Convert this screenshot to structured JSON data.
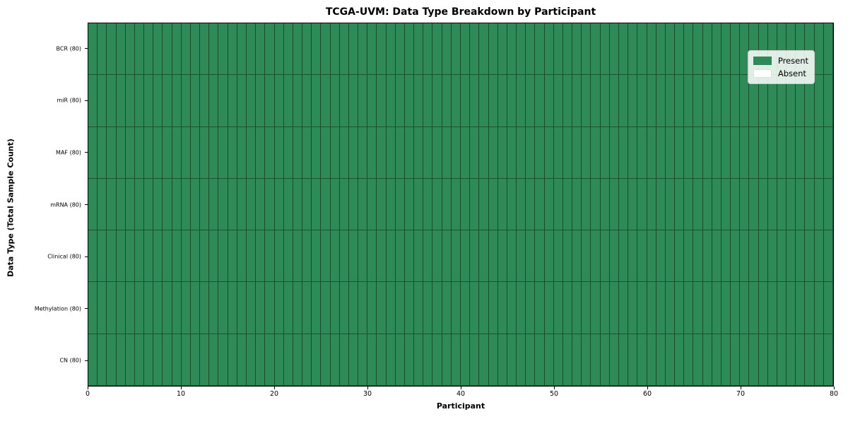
{
  "figure": {
    "title": "TCGA-UVM: Data Type Breakdown by Participant",
    "xlabel": "Participant",
    "ylabel": "Data Type (Total Sample Count)"
  },
  "legend": {
    "items": [
      {
        "name": "present",
        "label": "Present",
        "color": "#2e8b57"
      },
      {
        "name": "absent",
        "label": "Absent",
        "color": "#ffffff"
      }
    ],
    "position": "upper right"
  },
  "chart_data": {
    "type": "heatmap",
    "title": "TCGA-UVM: Data Type Breakdown by Participant",
    "xlabel": "Participant",
    "ylabel": "Data Type (Total Sample Count)",
    "x_range": [
      0,
      80
    ],
    "x_ticks": [
      0,
      10,
      20,
      30,
      40,
      50,
      60,
      70,
      80
    ],
    "n_participants": 80,
    "grid": "cell-edges-on",
    "colors": {
      "present": "#2e8b57",
      "absent": "#ffffff",
      "cell_edge": "rgba(0,0,0,0.45)"
    },
    "value_encoding": {
      "present": 1,
      "absent": 0
    },
    "rows": [
      {
        "label": "BCR (80)",
        "data_type": "BCR",
        "total_samples": 80,
        "present_count": 80,
        "absent_count": 0
      },
      {
        "label": "miR (80)",
        "data_type": "miR",
        "total_samples": 80,
        "present_count": 80,
        "absent_count": 0
      },
      {
        "label": "MAF (80)",
        "data_type": "MAF",
        "total_samples": 80,
        "present_count": 80,
        "absent_count": 0
      },
      {
        "label": "mRNA (80)",
        "data_type": "mRNA",
        "total_samples": 80,
        "present_count": 80,
        "absent_count": 0
      },
      {
        "label": "Clinical (80)",
        "data_type": "Clinical",
        "total_samples": 80,
        "present_count": 80,
        "absent_count": 0
      },
      {
        "label": "Methylation (80)",
        "data_type": "Methylation",
        "total_samples": 80,
        "present_count": 80,
        "absent_count": 0
      },
      {
        "label": "CN (80)",
        "data_type": "CN",
        "total_samples": 80,
        "present_count": 80,
        "absent_count": 0
      }
    ],
    "legend_entries": [
      "Present",
      "Absent"
    ]
  }
}
